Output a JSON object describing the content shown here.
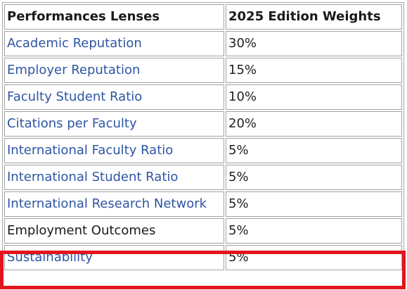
{
  "table": {
    "headers": [
      "Performances Lenses",
      "2025 Edition Weights"
    ],
    "rows": [
      {
        "lens": "Academic Reputation",
        "weight": "30%",
        "linked": true
      },
      {
        "lens": "Employer Reputation",
        "weight": "15%",
        "linked": true
      },
      {
        "lens": "Faculty Student Ratio",
        "weight": "10%",
        "linked": true
      },
      {
        "lens": "Citations per Faculty",
        "weight": "20%",
        "linked": true
      },
      {
        "lens": "International Faculty Ratio",
        "weight": "5%",
        "linked": true
      },
      {
        "lens": "International Student Ratio",
        "weight": "5%",
        "linked": true
      },
      {
        "lens": "International Research Network",
        "weight": "5%",
        "linked": true
      },
      {
        "lens": "Employment Outcomes",
        "weight": "5%",
        "linked": false
      },
      {
        "lens": "Sustainability",
        "weight": "5%",
        "linked": true
      }
    ]
  },
  "highlighted_row": "Sustainability",
  "colors": {
    "link": "#2e55a3",
    "text": "#1a1a1a",
    "border": "#a2a2a2",
    "highlight": "#e3141e"
  }
}
